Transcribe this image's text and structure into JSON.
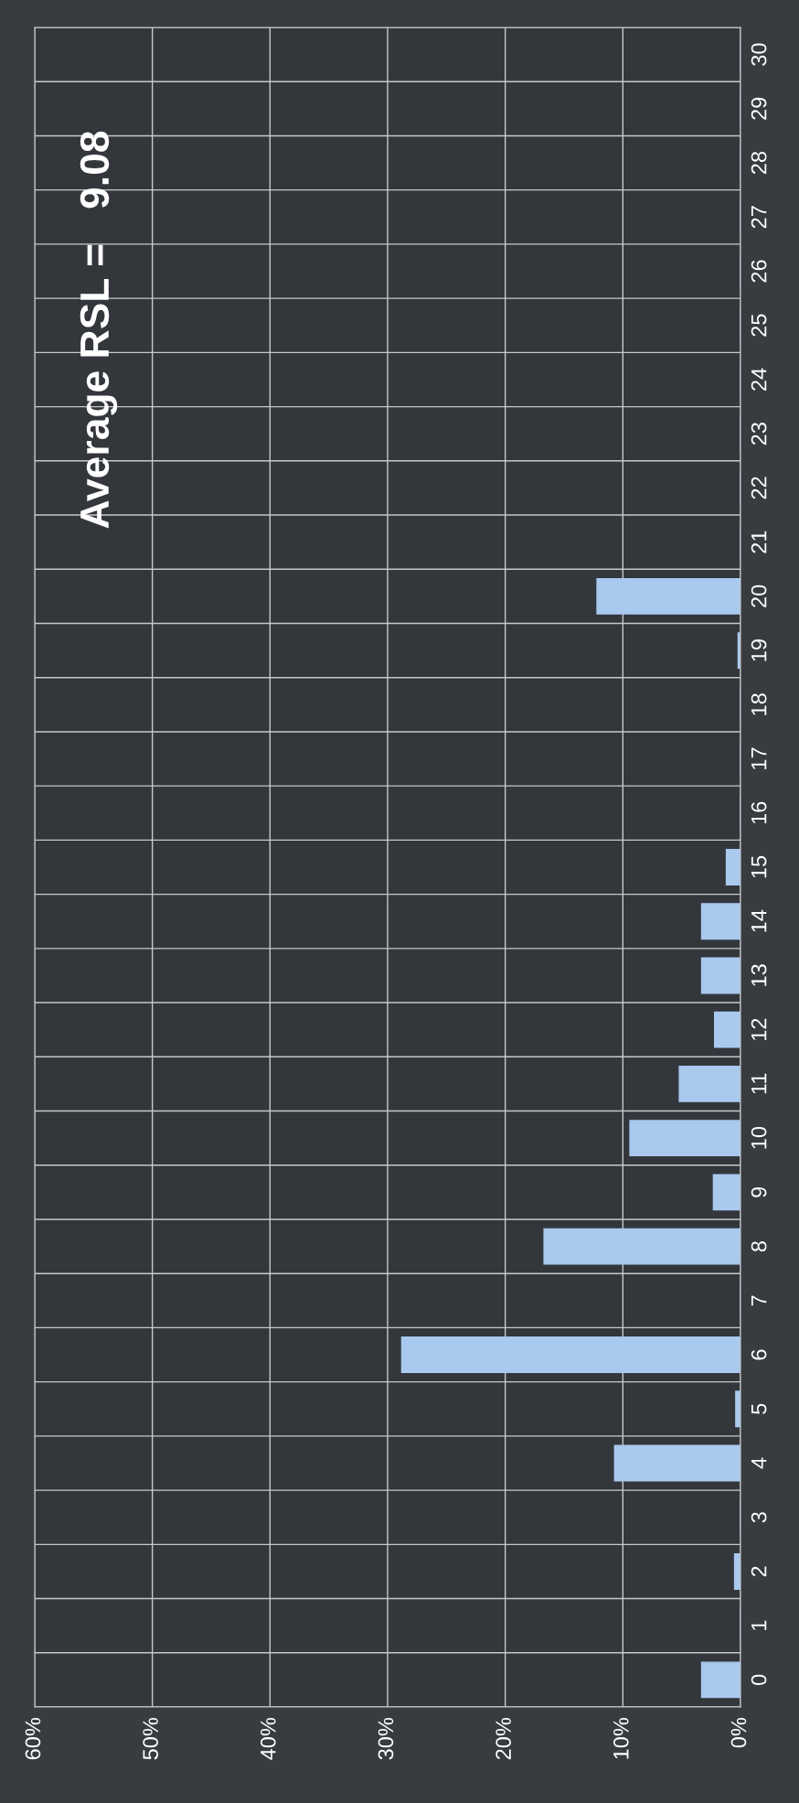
{
  "chart_data": {
    "type": "bar",
    "orientation": "horizontal",
    "categories": [
      "30",
      "29",
      "28",
      "27",
      "26",
      "25",
      "24",
      "23",
      "22",
      "21",
      "20",
      "19",
      "18",
      "17",
      "16",
      "15",
      "14",
      "13",
      "12",
      "11",
      "10",
      "9",
      "8",
      "7",
      "6",
      "5",
      "4",
      "3",
      "2",
      "1",
      "0"
    ],
    "values": [
      0,
      0,
      0,
      0,
      0,
      0,
      0,
      0,
      0,
      0,
      12.2,
      0.2,
      0,
      0,
      0,
      1.2,
      3.3,
      3.3,
      2.2,
      5.2,
      9.4,
      2.3,
      16.7,
      0,
      28.8,
      0.4,
      10.7,
      0,
      0.5,
      0,
      3.3
    ],
    "color": "#a9c9ef",
    "xlim": [
      60,
      0
    ],
    "xticks": [
      {
        "value": 60,
        "label": "60%"
      },
      {
        "value": 50,
        "label": "50%"
      },
      {
        "value": 40,
        "label": "40%"
      },
      {
        "value": 30,
        "label": "30%"
      },
      {
        "value": 20,
        "label": "20%"
      },
      {
        "value": 10,
        "label": "10%"
      },
      {
        "value": 0,
        "label": "0%"
      }
    ],
    "annotations": [
      "Average RSL =   9.08"
    ],
    "grid": true
  }
}
